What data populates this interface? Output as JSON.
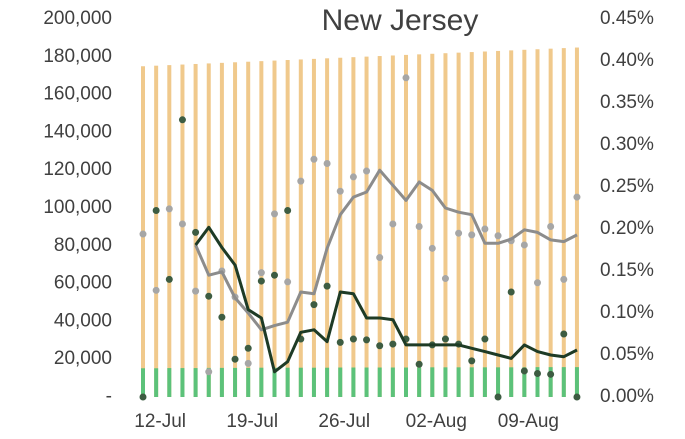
{
  "chart_data": {
    "type": "bar",
    "title": "New Jersey",
    "categories": [
      null,
      "12-Jul",
      null,
      null,
      null,
      null,
      null,
      null,
      "19-Jul",
      null,
      null,
      null,
      null,
      null,
      null,
      "26-Jul",
      null,
      null,
      null,
      null,
      null,
      null,
      "02-Aug",
      null,
      null,
      null,
      null,
      null,
      null,
      "09-Aug",
      null,
      null,
      null,
      null
    ],
    "ylim": [
      0,
      200000
    ],
    "yticks": [
      {
        "value": 0,
        "label": "-"
      },
      {
        "value": 20000,
        "label": "20,000"
      },
      {
        "value": 40000,
        "label": "40,000"
      },
      {
        "value": 60000,
        "label": "60,000"
      },
      {
        "value": 80000,
        "label": "80,000"
      },
      {
        "value": 100000,
        "label": "100,000"
      },
      {
        "value": 120000,
        "label": "120,000"
      },
      {
        "value": 140000,
        "label": "140,000"
      },
      {
        "value": 160000,
        "label": "160,000"
      },
      {
        "value": 180000,
        "label": "180,000"
      },
      {
        "value": 200000,
        "label": "200,000"
      }
    ],
    "y2lim": [
      0,
      0.45
    ],
    "y2ticks": [
      {
        "value": 0,
        "label": "0.00%"
      },
      {
        "value": 0.05,
        "label": "0.05%"
      },
      {
        "value": 0.1,
        "label": "0.10%"
      },
      {
        "value": 0.15,
        "label": "0.15%"
      },
      {
        "value": 0.2,
        "label": "0.20%"
      },
      {
        "value": 0.25,
        "label": "0.25%"
      },
      {
        "value": 0.3,
        "label": "0.30%"
      },
      {
        "value": 0.35,
        "label": "0.35%"
      },
      {
        "value": 0.4,
        "label": "0.40%"
      },
      {
        "value": 0.45,
        "label": "0.45%"
      }
    ],
    "series": [
      {
        "type": "bar",
        "color": "#f0c98c",
        "values": [
          175000,
          175300,
          175600,
          175900,
          176200,
          176500,
          176800,
          177100,
          177400,
          177700,
          178000,
          178300,
          178600,
          178900,
          179200,
          179500,
          179800,
          180100,
          180400,
          180700,
          181000,
          181300,
          181600,
          181900,
          182200,
          182500,
          182800,
          183100,
          183400,
          183700,
          184000,
          184300,
          184600,
          184900
        ]
      },
      {
        "type": "bar",
        "color": "#5cc27a",
        "values": [
          15200,
          15200,
          15300,
          15300,
          15300,
          15400,
          15400,
          15400,
          15400,
          15500,
          15500,
          15500,
          15500,
          15500,
          15500,
          15600,
          15600,
          15600,
          15600,
          15600,
          15600,
          15600,
          15700,
          15700,
          15700,
          15700,
          15700,
          15700,
          15700,
          15700,
          15800,
          15800,
          15800,
          15800
        ]
      },
      {
        "type": "scatter",
        "axis": "y2",
        "color": "#a6a6a6",
        "values": [
          0.194,
          0.127,
          0.224,
          0.206,
          0.126,
          0.03,
          0.15,
          0.119,
          0.04,
          0.148,
          0.218,
          0.137,
          0.257,
          0.283,
          0.278,
          0.245,
          0.262,
          0.269,
          0.166,
          0.206,
          0.38,
          0.203,
          0.177,
          0.141,
          0.195,
          0.193,
          0.2,
          0.192,
          0.186,
          0.181,
          0.136,
          0.203,
          0.14,
          0.238
        ]
      },
      {
        "type": "scatter",
        "axis": "y2",
        "color": "#3d5c42",
        "values": [
          0.0,
          0.222,
          0.14,
          0.33,
          0.196,
          0.12,
          0.095,
          0.045,
          0.058,
          0.138,
          0.145,
          0.222,
          0.069,
          0.11,
          0.132,
          0.065,
          0.069,
          0.068,
          0.061,
          0.063,
          0.069,
          0.039,
          0.062,
          0.069,
          0.063,
          0.043,
          0.069,
          0.0,
          0.125,
          0.031,
          0.028,
          0.027,
          0.075,
          0.0
        ]
      },
      {
        "type": "line",
        "axis": "y2",
        "color": "#8c8c8c",
        "values": [
          null,
          null,
          null,
          null,
          0.181,
          0.145,
          0.149,
          0.118,
          0.1,
          0.08,
          0.085,
          0.089,
          0.125,
          0.123,
          0.177,
          0.217,
          0.238,
          0.244,
          0.27,
          0.252,
          0.234,
          0.256,
          0.246,
          0.225,
          0.22,
          0.217,
          0.183,
          0.183,
          0.188,
          0.199,
          0.196,
          0.187,
          0.185,
          0.193
        ]
      },
      {
        "type": "line",
        "axis": "y2",
        "color": "#1e3b26",
        "values": [
          null,
          null,
          null,
          null,
          0.181,
          0.202,
          0.178,
          0.157,
          0.104,
          0.094,
          0.03,
          0.042,
          0.077,
          0.08,
          0.066,
          0.125,
          0.123,
          0.094,
          0.094,
          0.092,
          0.062,
          0.062,
          0.062,
          0.062,
          0.062,
          0.058,
          0.054,
          0.05,
          0.046,
          0.062,
          0.054,
          0.05,
          0.048,
          0.056
        ]
      }
    ]
  }
}
